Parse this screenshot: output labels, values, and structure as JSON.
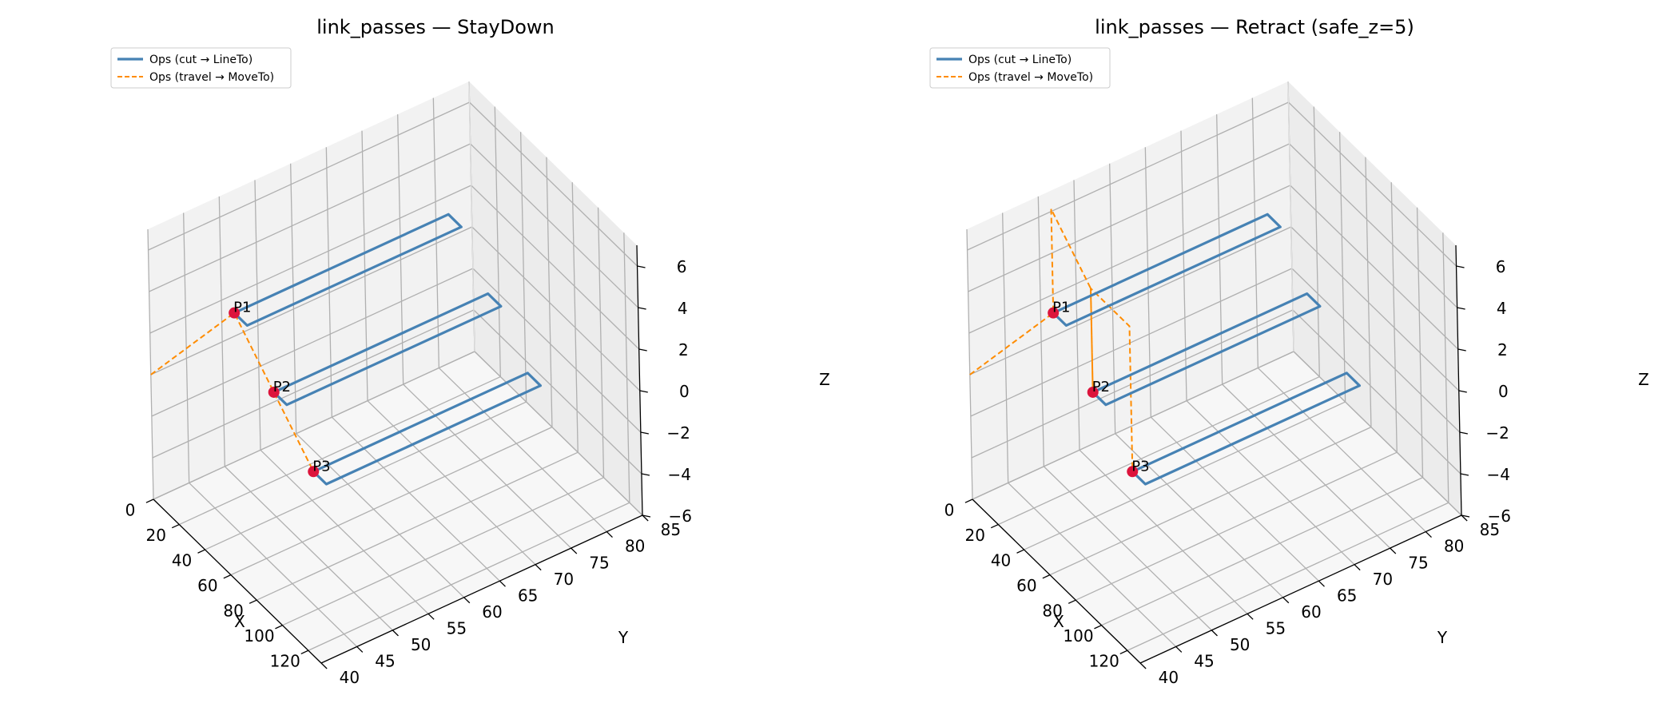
{
  "figure": {
    "background": "#ffffff"
  },
  "style": {
    "cut_color": "#4682b4",
    "travel_color": "#ff8c00",
    "point_color": "#dc143c",
    "pane_color": "#f2f2f2",
    "grid_color": "#b0b0b0"
  },
  "chart_data": [
    {
      "type": "line3d",
      "title": "link_passes — StayDown",
      "xlabel": "X",
      "ylabel": "Y",
      "zlabel": "Z",
      "xlim": [
        0,
        130
      ],
      "ylim": [
        40,
        85
      ],
      "zlim": [
        -6,
        7
      ],
      "xticks": [
        "0",
        "20",
        "40",
        "60",
        "80",
        "100",
        "120"
      ],
      "yticks": [
        "40",
        "45",
        "50",
        "55",
        "60",
        "65",
        "70",
        "75",
        "80",
        "85"
      ],
      "zticks": [
        "−6",
        "−4",
        "−2",
        "0",
        "2",
        "4",
        "6"
      ],
      "grid": true,
      "legend_location": "upper left",
      "legend": [
        "Ops (cut → LineTo)",
        "Ops (travel → MoveTo)"
      ],
      "series": [
        {
          "name": "Ops (travel → MoveTo)",
          "kind": "travel",
          "points": [
            [
              0,
              40,
              0
            ],
            [
              10,
              50,
              2
            ],
            [
              40,
              50,
              0
            ],
            [
              70,
              50,
              -2
            ]
          ]
        },
        {
          "name": "Ops (cut → LineTo)",
          "kind": "cut",
          "points": [
            [
              10,
              50,
              2
            ],
            [
              10,
              80,
              2
            ],
            [
              20,
              80,
              2
            ],
            [
              20,
              50,
              2
            ],
            [
              10,
              50,
              2
            ]
          ]
        },
        {
          "name": "Ops (cut → LineTo)",
          "kind": "cut",
          "points": [
            [
              40,
              50,
              0
            ],
            [
              40,
              80,
              0
            ],
            [
              50,
              80,
              0
            ],
            [
              50,
              50,
              0
            ],
            [
              40,
              50,
              0
            ]
          ]
        },
        {
          "name": "Ops (cut → LineTo)",
          "kind": "cut",
          "points": [
            [
              70,
              50,
              -2
            ],
            [
              70,
              80,
              -2
            ],
            [
              80,
              80,
              -2
            ],
            [
              80,
              50,
              -2
            ],
            [
              70,
              50,
              -2
            ]
          ]
        }
      ],
      "markers": [
        {
          "label": "P1",
          "x": 10,
          "y": 50,
          "z": 2
        },
        {
          "label": "P2",
          "x": 40,
          "y": 50,
          "z": 0
        },
        {
          "label": "P3",
          "x": 70,
          "y": 50,
          "z": -2
        }
      ]
    },
    {
      "type": "line3d",
      "title": "link_passes — Retract (safe_z=5)",
      "xlabel": "X",
      "ylabel": "Y",
      "zlabel": "Z",
      "xlim": [
        0,
        130
      ],
      "ylim": [
        40,
        85
      ],
      "zlim": [
        -6,
        7
      ],
      "xticks": [
        "0",
        "20",
        "40",
        "60",
        "80",
        "100",
        "120"
      ],
      "yticks": [
        "40",
        "45",
        "50",
        "55",
        "60",
        "65",
        "70",
        "75",
        "80",
        "85"
      ],
      "zticks": [
        "−6",
        "−4",
        "−2",
        "0",
        "2",
        "4",
        "6"
      ],
      "grid": true,
      "legend_location": "upper left",
      "legend": [
        "Ops (cut → LineTo)",
        "Ops (travel → MoveTo)"
      ],
      "series": [
        {
          "name": "Ops (travel → MoveTo)",
          "kind": "travel",
          "points": [
            [
              0,
              40,
              0
            ],
            [
              10,
              50,
              2
            ],
            [
              10,
              50,
              7
            ],
            [
              40,
              50,
              5
            ],
            [
              40,
              50,
              0
            ],
            [
              40,
              50,
              5
            ],
            [
              70,
              50,
              5
            ],
            [
              70,
              50,
              -2
            ]
          ]
        },
        {
          "name": "Ops (cut → LineTo)",
          "kind": "cut",
          "points": [
            [
              10,
              50,
              2
            ],
            [
              10,
              80,
              2
            ],
            [
              20,
              80,
              2
            ],
            [
              20,
              50,
              2
            ],
            [
              10,
              50,
              2
            ]
          ]
        },
        {
          "name": "Ops (cut → LineTo)",
          "kind": "cut",
          "points": [
            [
              40,
              50,
              0
            ],
            [
              40,
              80,
              0
            ],
            [
              50,
              80,
              0
            ],
            [
              50,
              50,
              0
            ],
            [
              40,
              50,
              0
            ]
          ]
        },
        {
          "name": "Ops (cut → LineTo)",
          "kind": "cut",
          "points": [
            [
              70,
              50,
              -2
            ],
            [
              70,
              80,
              -2
            ],
            [
              80,
              80,
              -2
            ],
            [
              80,
              50,
              -2
            ],
            [
              70,
              50,
              -2
            ]
          ]
        }
      ],
      "markers": [
        {
          "label": "P1",
          "x": 10,
          "y": 50,
          "z": 2
        },
        {
          "label": "P2",
          "x": 40,
          "y": 50,
          "z": 0
        },
        {
          "label": "P3",
          "x": 70,
          "y": 50,
          "z": -2
        }
      ]
    }
  ]
}
